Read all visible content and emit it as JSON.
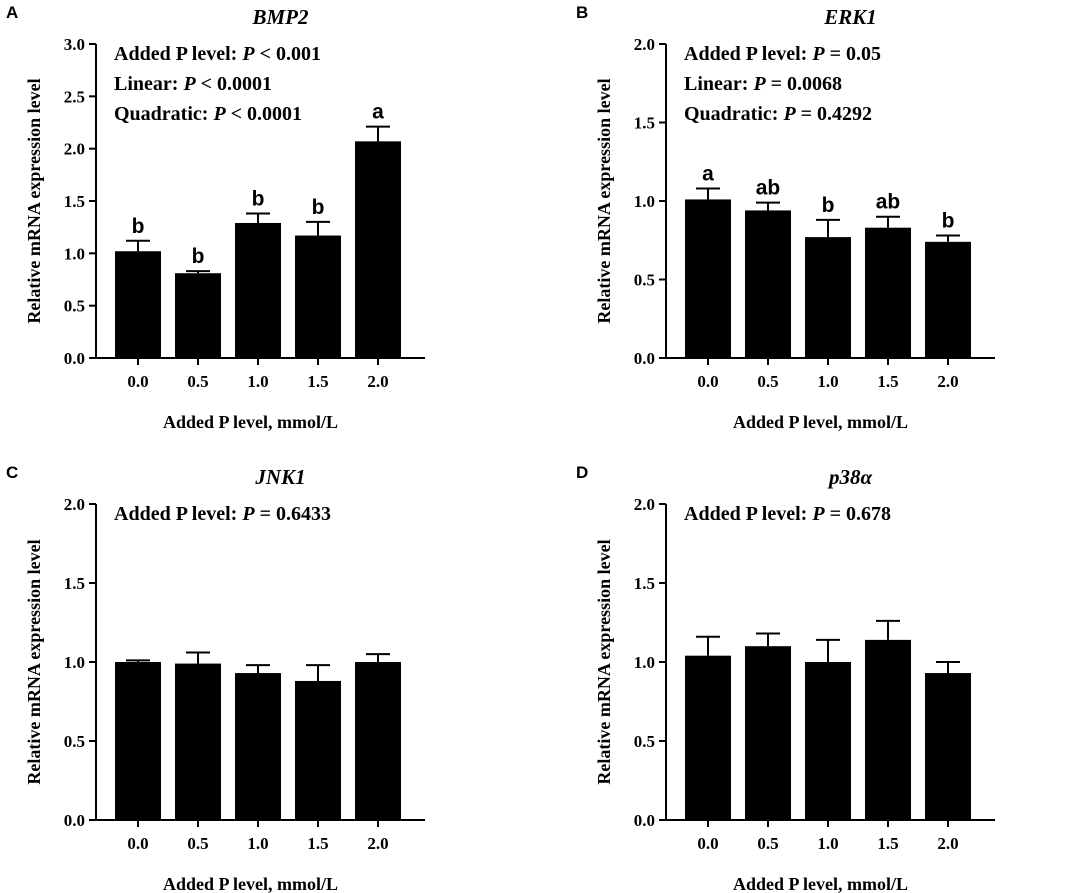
{
  "chart_data": [
    {
      "panel": "A",
      "type": "bar",
      "title": "BMP2",
      "xlabel": "Added P level, mmol/L",
      "ylabel": "Relative mRNA expression level",
      "categories": [
        "0.0",
        "0.5",
        "1.0",
        "1.5",
        "2.0"
      ],
      "values": [
        1.02,
        0.81,
        1.29,
        1.17,
        2.07
      ],
      "errors": [
        0.1,
        0.02,
        0.09,
        0.13,
        0.14
      ],
      "letters": [
        "b",
        "b",
        "b",
        "b",
        "a"
      ],
      "ylim": [
        0,
        3.0
      ],
      "yticks": [
        "0.0",
        "0.5",
        "1.0",
        "1.5",
        "2.0",
        "2.5",
        "3.0"
      ],
      "stats": [
        {
          "prefix": "Added P level: ",
          "p": "P",
          "suffix": " < 0.001"
        },
        {
          "prefix": "Linear: ",
          "p": "P",
          "suffix": " < 0.0001"
        },
        {
          "prefix": "Quadratic: ",
          "p": "P",
          "suffix": " < 0.0001"
        }
      ]
    },
    {
      "panel": "B",
      "type": "bar",
      "title": "ERK1",
      "xlabel": "Added P level, mmol/L",
      "ylabel": "Relative mRNA expression level",
      "categories": [
        "0.0",
        "0.5",
        "1.0",
        "1.5",
        "2.0"
      ],
      "values": [
        1.01,
        0.94,
        0.77,
        0.83,
        0.74
      ],
      "errors": [
        0.07,
        0.05,
        0.11,
        0.07,
        0.04
      ],
      "letters": [
        "a",
        "ab",
        "b",
        "ab",
        "b"
      ],
      "ylim": [
        0,
        2.0
      ],
      "yticks": [
        "0.0",
        "0.5",
        "1.0",
        "1.5",
        "2.0"
      ],
      "stats": [
        {
          "prefix": "Added P level: ",
          "p": "P",
          "suffix": " = 0.05"
        },
        {
          "prefix": "Linear: ",
          "p": "P",
          "suffix": " = 0.0068"
        },
        {
          "prefix": "Quadratic: ",
          "p": "P",
          "suffix": " = 0.4292"
        }
      ]
    },
    {
      "panel": "C",
      "type": "bar",
      "title": "JNK1",
      "xlabel": "Added P level, mmol/L",
      "ylabel": "Relative mRNA expression level",
      "categories": [
        "0.0",
        "0.5",
        "1.0",
        "1.5",
        "2.0"
      ],
      "values": [
        1.0,
        0.99,
        0.93,
        0.88,
        1.0
      ],
      "errors": [
        0.01,
        0.07,
        0.05,
        0.1,
        0.05
      ],
      "letters": [
        "",
        "",
        "",
        "",
        ""
      ],
      "ylim": [
        0,
        2.0
      ],
      "yticks": [
        "0.0",
        "0.5",
        "1.0",
        "1.5",
        "2.0"
      ],
      "stats": [
        {
          "prefix": "Added P level: ",
          "p": "P",
          "suffix": " = 0.6433"
        }
      ]
    },
    {
      "panel": "D",
      "type": "bar",
      "title": "p38α",
      "xlabel": "Added P level, mmol/L",
      "ylabel": "Relative mRNA expression level",
      "categories": [
        "0.0",
        "0.5",
        "1.0",
        "1.5",
        "2.0"
      ],
      "values": [
        1.04,
        1.1,
        1.0,
        1.14,
        0.93
      ],
      "errors": [
        0.12,
        0.08,
        0.14,
        0.12,
        0.07
      ],
      "letters": [
        "",
        "",
        "",
        "",
        ""
      ],
      "ylim": [
        0,
        2.0
      ],
      "yticks": [
        "0.0",
        "0.5",
        "1.0",
        "1.5",
        "2.0"
      ],
      "stats": [
        {
          "prefix": "Added P level: ",
          "p": "P",
          "suffix": " = 0.678"
        }
      ]
    }
  ],
  "colors": {
    "bar": "#000000",
    "axis": "#000000",
    "background": "#ffffff"
  }
}
